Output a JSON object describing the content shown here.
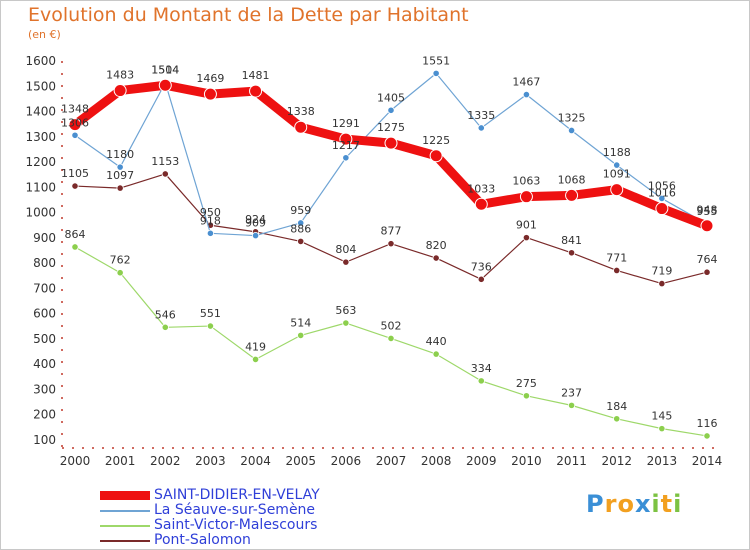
{
  "header": {
    "title": "Evolution du Montant de la Dette par Habitant",
    "unit": "(en €)"
  },
  "logo": {
    "letters": [
      "P",
      "r",
      "o",
      "x",
      "i",
      "t",
      "i"
    ],
    "colors": [
      "#3a8fd6",
      "#f2a020",
      "#f2a020",
      "#3a8fd6",
      "#7cc242",
      "#f2a020",
      "#7cc242"
    ]
  },
  "chart_data": {
    "type": "line",
    "title": "Evolution du Montant de la Dette par Habitant",
    "ylabel": "(en €)",
    "xlabel": "",
    "x": [
      "2000",
      "2001",
      "2002",
      "2003",
      "2004",
      "2005",
      "2006",
      "2007",
      "2008",
      "2009",
      "2010",
      "2011",
      "2012",
      "2013",
      "2014"
    ],
    "ylim": [
      100,
      1600
    ],
    "yticks": [
      100,
      200,
      300,
      400,
      500,
      600,
      700,
      800,
      900,
      1000,
      1100,
      1200,
      1300,
      1400,
      1500,
      1600
    ],
    "grid": "none",
    "legend_position": "bottom-left",
    "series": [
      {
        "name": "SAINT-DIDIER-EN-VELAY",
        "color": "#ee1111",
        "values": [
          1348,
          1483,
          1504,
          1469,
          1481,
          1338,
          1291,
          1275,
          1225,
          1033,
          1063,
          1068,
          1091,
          1016,
          948
        ]
      },
      {
        "name": "La Séauve-sur-Semène",
        "color": "#6fa4d4",
        "values": [
          1306,
          1180,
          1514,
          918,
          909,
          959,
          1217,
          1405,
          1551,
          1335,
          1467,
          1325,
          1188,
          1056,
          955
        ]
      },
      {
        "name": "Saint-Victor-Malescours",
        "color": "#9ed86a",
        "values": [
          864,
          762,
          546,
          551,
          419,
          514,
          563,
          502,
          440,
          334,
          275,
          237,
          184,
          145,
          116
        ]
      },
      {
        "name": "Pont-Salomon",
        "color": "#7a2a2a",
        "values": [
          1105,
          1097,
          1153,
          950,
          924,
          886,
          804,
          877,
          820,
          736,
          901,
          841,
          771,
          719,
          764
        ]
      }
    ],
    "data_labels": [
      [
        "1348",
        "1483",
        "1504",
        "1469",
        "1481",
        "1338",
        "1291",
        "1275",
        "1225",
        "1033",
        "1063",
        "1068",
        "1091",
        "1016",
        "948"
      ],
      [
        "1306",
        "1180",
        "1514",
        "918",
        "909",
        "959",
        "1217",
        "1405",
        "1551",
        "1335",
        "1467",
        "1325",
        "1188",
        "1056",
        "955"
      ],
      [
        "864",
        "762",
        "546",
        "551",
        "419",
        "514",
        "563",
        "502",
        "440",
        "334",
        "275",
        "237",
        "184",
        "145",
        "116"
      ],
      [
        "1105",
        "1097",
        "1153",
        "950",
        "924",
        "886",
        "804",
        "877",
        "820",
        "736",
        "901",
        "841",
        "771",
        "719",
        "764"
      ]
    ]
  }
}
